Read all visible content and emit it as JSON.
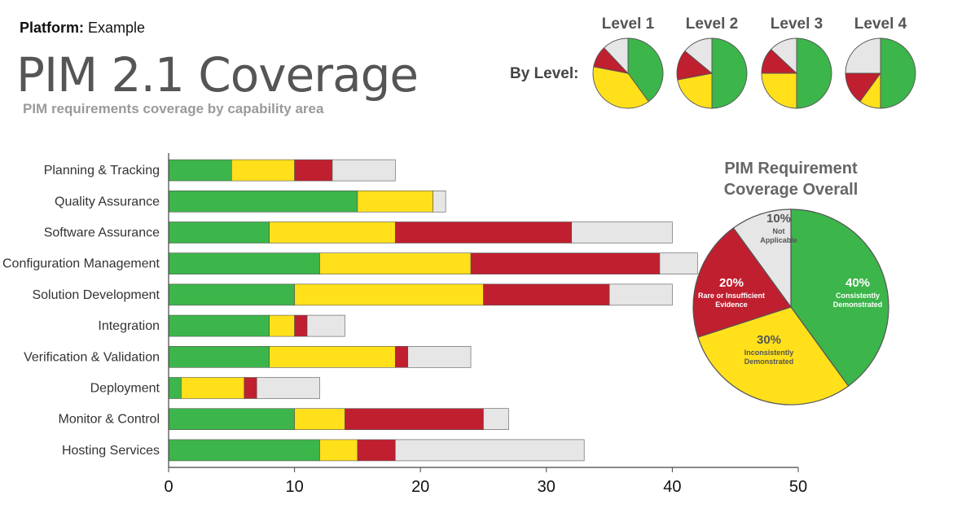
{
  "header": {
    "platform_label": "Platform:",
    "platform_value": "Example",
    "title": "PIM 2.1 Coverage",
    "subtitle": "PIM requirements coverage by capability area"
  },
  "colors": {
    "green": "#3cb54a",
    "yellow": "#ffe01b",
    "red": "#c01f2f",
    "gray": "#e6e6e6"
  },
  "chart_data": [
    {
      "type": "bar",
      "orientation": "horizontal",
      "stacked": true,
      "title": "",
      "categories": [
        "Planning & Tracking",
        "Quality Assurance",
        "Software Assurance",
        "Configuration Management",
        "Solution Development",
        "Integration",
        "Verification & Validation",
        "Deployment",
        "Monitor & Control",
        "Hosting Services"
      ],
      "series": [
        {
          "name": "Consistently Demonstrated",
          "color": "#3cb54a",
          "values": [
            5,
            15,
            8,
            12,
            10,
            8,
            8,
            1,
            10,
            12
          ]
        },
        {
          "name": "Inconsistently Demonstrated",
          "color": "#ffe01b",
          "values": [
            5,
            6,
            10,
            12,
            15,
            2,
            10,
            5,
            4,
            3
          ]
        },
        {
          "name": "Rare or Insufficient Evidence",
          "color": "#c01f2f",
          "values": [
            3,
            0,
            14,
            15,
            10,
            1,
            1,
            1,
            11,
            3
          ]
        },
        {
          "name": "Not Applicable",
          "color": "#e6e6e6",
          "values": [
            5,
            1,
            8,
            3,
            5,
            3,
            5,
            5,
            2,
            15
          ]
        }
      ],
      "xlim": [
        0,
        50
      ],
      "xticks": [
        0,
        10,
        20,
        30,
        40,
        50
      ],
      "xlabel": "",
      "ylabel": ""
    },
    {
      "type": "pie",
      "title_lines": [
        "PIM Requirement",
        "Coverage Overall"
      ],
      "slices": [
        {
          "pct_label": "40%",
          "desc": [
            "Consistently",
            "Demonstrated"
          ],
          "value": 40,
          "color": "#3cb54a"
        },
        {
          "pct_label": "30%",
          "desc": [
            "Inconsistently",
            "Demonstrated"
          ],
          "value": 30,
          "color": "#ffe01b"
        },
        {
          "pct_label": "20%",
          "desc": [
            "Rare or Insufficient",
            "Evidence"
          ],
          "value": 20,
          "color": "#c01f2f"
        },
        {
          "pct_label": "10%",
          "desc": [
            "Not",
            "Applicable"
          ],
          "value": 10,
          "color": "#e6e6e6"
        }
      ]
    },
    {
      "type": "pie",
      "group_label": "By Level:",
      "levels": [
        {
          "label": "Level 1",
          "values": [
            40,
            38,
            10,
            12
          ]
        },
        {
          "label": "Level 2",
          "values": [
            50,
            22,
            14,
            14
          ]
        },
        {
          "label": "Level 3",
          "values": [
            50,
            25,
            12,
            13
          ]
        },
        {
          "label": "Level 4",
          "values": [
            50,
            10,
            15,
            25
          ]
        }
      ],
      "slice_order": [
        "Consistently Demonstrated",
        "Inconsistently Demonstrated",
        "Rare or Insufficient Evidence",
        "Not Applicable"
      ]
    }
  ]
}
